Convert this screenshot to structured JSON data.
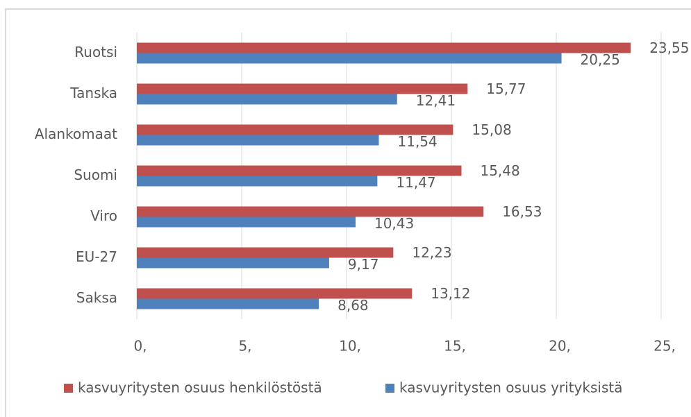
{
  "chart_data": {
    "type": "bar",
    "orientation": "horizontal",
    "categories": [
      "Ruotsi",
      "Tanska",
      "Alankomaat",
      "Suomi",
      "Viro",
      "EU-27",
      "Saksa"
    ],
    "series": [
      {
        "name": "kasvuyritysten osuus henkilöstöstä",
        "color": "#c0504d",
        "values": [
          23.55,
          15.77,
          15.08,
          15.48,
          16.53,
          12.23,
          13.12
        ],
        "value_labels": [
          "23,55",
          "15,77",
          "15,08",
          "15,48",
          "16,53",
          "12,23",
          "13,12"
        ]
      },
      {
        "name": "kasvuyritysten osuus yrityksistä",
        "color": "#4f81bd",
        "values": [
          20.25,
          12.41,
          11.54,
          11.47,
          10.43,
          9.17,
          8.68
        ],
        "value_labels": [
          "20,25",
          "12,41",
          "11,54",
          "11,47",
          "10,43",
          "9,17",
          "8,68"
        ]
      }
    ],
    "xlim": [
      0,
      25
    ],
    "xticks": [
      {
        "value": 0,
        "label": "0,"
      },
      {
        "value": 5,
        "label": "5,"
      },
      {
        "value": 10,
        "label": "10,"
      },
      {
        "value": 15,
        "label": "15,"
      },
      {
        "value": 20,
        "label": "20,"
      },
      {
        "value": 25,
        "label": "25,"
      }
    ],
    "grid": true,
    "legend": "bottom"
  }
}
